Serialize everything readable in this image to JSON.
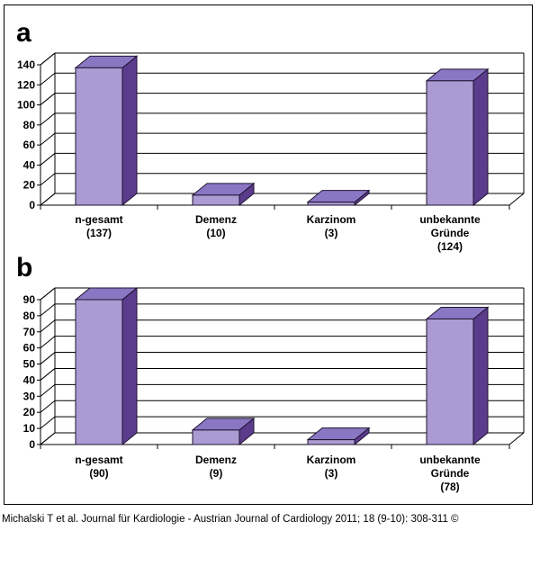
{
  "colors": {
    "bar_front": "#ab9bd3",
    "bar_top": "#8a77c4",
    "bar_side": "#5b3c8c",
    "bar_stroke": "#1f1230",
    "grid": "#000000"
  },
  "chart_data": [
    {
      "type": "bar",
      "panel_label": "a",
      "categories": [
        "n-gesamt (137)",
        "Demenz (10)",
        "Karzinom (3)",
        "unbekannte Gründe (124)"
      ],
      "category_lines": [
        [
          "n-gesamt",
          "(137)"
        ],
        [
          "Demenz",
          "(10)"
        ],
        [
          "Karzinom",
          "(3)"
        ],
        [
          "unbekannte",
          "Gründe",
          "(124)"
        ]
      ],
      "values": [
        137,
        10,
        3,
        124
      ],
      "ylim": [
        0,
        140
      ],
      "yticks": [
        0,
        20,
        40,
        60,
        80,
        100,
        120,
        140
      ],
      "grid": true,
      "title": "",
      "xlabel": "",
      "ylabel": ""
    },
    {
      "type": "bar",
      "panel_label": "b",
      "categories": [
        "n-gesamt (90)",
        "Demenz (9)",
        "Karzinom (3)",
        "unbekannte Gründe (78)"
      ],
      "category_lines": [
        [
          "n-gesamt",
          "(90)"
        ],
        [
          "Demenz",
          "(9)"
        ],
        [
          "Karzinom",
          "(3)"
        ],
        [
          "unbekannte",
          "Gründe",
          "(78)"
        ]
      ],
      "values": [
        90,
        9,
        3,
        78
      ],
      "ylim": [
        0,
        90
      ],
      "yticks": [
        0,
        10,
        20,
        30,
        40,
        50,
        60,
        70,
        80,
        90
      ],
      "grid": true,
      "title": "",
      "xlabel": "",
      "ylabel": ""
    }
  ],
  "caption": "Michalski T et al. Journal für Kardiologie - Austrian Journal of Cardiology 2011; 18 (9-10): 308-311 ©"
}
